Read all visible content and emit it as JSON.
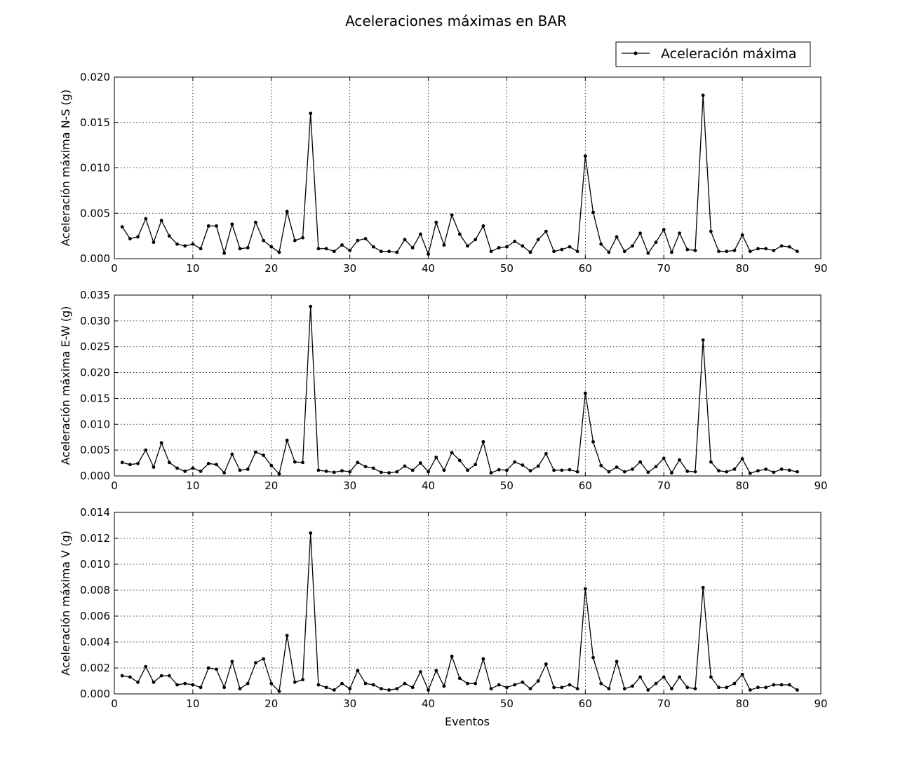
{
  "figure": {
    "title": "Aceleraciones máximas en BAR",
    "legend_label": "Aceleración máxima",
    "legend_position": "top-right",
    "xlabel": "Eventos"
  },
  "chart_data": [
    {
      "type": "line",
      "ylabel": "Aceleración máxima N-S (g)",
      "xlim": [
        0,
        90
      ],
      "ylim": [
        0,
        0.02
      ],
      "xticks": [
        0,
        10,
        20,
        30,
        40,
        50,
        60,
        70,
        80,
        90
      ],
      "yticks": [
        0.0,
        0.005,
        0.01,
        0.015,
        0.02
      ],
      "ytick_labels": [
        "0.000",
        "0.005",
        "0.010",
        "0.015",
        "0.020"
      ],
      "grid": true,
      "series": [
        {
          "name": "Aceleración máxima",
          "color": "#000000",
          "x": [
            1,
            2,
            3,
            4,
            5,
            6,
            7,
            8,
            9,
            10,
            11,
            12,
            13,
            14,
            15,
            16,
            17,
            18,
            19,
            20,
            21,
            22,
            23,
            24,
            25,
            26,
            27,
            28,
            29,
            30,
            31,
            32,
            33,
            34,
            35,
            36,
            37,
            38,
            39,
            40,
            41,
            42,
            43,
            44,
            45,
            46,
            47,
            48,
            49,
            50,
            51,
            52,
            53,
            54,
            55,
            56,
            57,
            58,
            59,
            60,
            61,
            62,
            63,
            64,
            65,
            66,
            67,
            68,
            69,
            70,
            71,
            72,
            73,
            74,
            75,
            76,
            77,
            78,
            79,
            80,
            81,
            82,
            83,
            84,
            85,
            86,
            87
          ],
          "y": [
            0.0035,
            0.0022,
            0.0024,
            0.0044,
            0.0018,
            0.0042,
            0.0025,
            0.0016,
            0.0014,
            0.0016,
            0.0011,
            0.0036,
            0.0036,
            0.0006,
            0.0038,
            0.0011,
            0.0012,
            0.004,
            0.002,
            0.0013,
            0.0007,
            0.0052,
            0.002,
            0.0023,
            0.016,
            0.0011,
            0.0011,
            0.0008,
            0.0015,
            0.0009,
            0.002,
            0.0022,
            0.0013,
            0.0008,
            0.0008,
            0.0007,
            0.0021,
            0.0012,
            0.0027,
            0.0005,
            0.004,
            0.0015,
            0.0048,
            0.0027,
            0.0014,
            0.0021,
            0.0036,
            0.0008,
            0.0012,
            0.0013,
            0.0019,
            0.0014,
            0.0007,
            0.0021,
            0.003,
            0.0008,
            0.001,
            0.0013,
            0.0008,
            0.0113,
            0.0051,
            0.0016,
            0.0007,
            0.0024,
            0.0008,
            0.0014,
            0.0028,
            0.0006,
            0.0018,
            0.0032,
            0.0007,
            0.0028,
            0.001,
            0.0009,
            0.018,
            0.003,
            0.0008,
            0.0008,
            0.0009,
            0.0026,
            0.0008,
            0.0011,
            0.0011,
            0.0009,
            0.0014,
            0.0013,
            0.0008
          ]
        }
      ]
    },
    {
      "type": "line",
      "ylabel": "Aceleración máxima E-W (g)",
      "xlim": [
        0,
        90
      ],
      "ylim": [
        0,
        0.035
      ],
      "xticks": [
        0,
        10,
        20,
        30,
        40,
        50,
        60,
        70,
        80,
        90
      ],
      "yticks": [
        0.0,
        0.005,
        0.01,
        0.015,
        0.02,
        0.025,
        0.03,
        0.035
      ],
      "ytick_labels": [
        "0.000",
        "0.005",
        "0.010",
        "0.015",
        "0.020",
        "0.025",
        "0.030",
        "0.035"
      ],
      "grid": true,
      "series": [
        {
          "name": "Aceleración máxima",
          "color": "#000000",
          "x": [
            1,
            2,
            3,
            4,
            5,
            6,
            7,
            8,
            9,
            10,
            11,
            12,
            13,
            14,
            15,
            16,
            17,
            18,
            19,
            20,
            21,
            22,
            23,
            24,
            25,
            26,
            27,
            28,
            29,
            30,
            31,
            32,
            33,
            34,
            35,
            36,
            37,
            38,
            39,
            40,
            41,
            42,
            43,
            44,
            45,
            46,
            47,
            48,
            49,
            50,
            51,
            52,
            53,
            54,
            55,
            56,
            57,
            58,
            59,
            60,
            61,
            62,
            63,
            64,
            65,
            66,
            67,
            68,
            69,
            70,
            71,
            72,
            73,
            74,
            75,
            76,
            77,
            78,
            79,
            80,
            81,
            82,
            83,
            84,
            85,
            86,
            87
          ],
          "y": [
            0.0026,
            0.0022,
            0.0024,
            0.005,
            0.0017,
            0.0064,
            0.0026,
            0.0015,
            0.0009,
            0.0015,
            0.0009,
            0.0024,
            0.0022,
            0.0006,
            0.0042,
            0.0011,
            0.0013,
            0.0046,
            0.004,
            0.002,
            0.0004,
            0.0069,
            0.0027,
            0.0026,
            0.0328,
            0.0011,
            0.0009,
            0.0007,
            0.001,
            0.0008,
            0.0026,
            0.0018,
            0.0015,
            0.0007,
            0.0006,
            0.0008,
            0.0019,
            0.0011,
            0.0025,
            0.0008,
            0.0036,
            0.0011,
            0.0045,
            0.003,
            0.0011,
            0.0022,
            0.0066,
            0.0006,
            0.0012,
            0.0011,
            0.0027,
            0.0021,
            0.001,
            0.0019,
            0.0043,
            0.0011,
            0.0011,
            0.0012,
            0.0008,
            0.016,
            0.0066,
            0.002,
            0.0008,
            0.0017,
            0.0008,
            0.0013,
            0.0027,
            0.0007,
            0.0018,
            0.0034,
            0.0006,
            0.0031,
            0.0009,
            0.0008,
            0.0263,
            0.0027,
            0.001,
            0.0008,
            0.0013,
            0.0033,
            0.0005,
            0.001,
            0.0013,
            0.0007,
            0.0013,
            0.0011,
            0.0008
          ]
        }
      ]
    },
    {
      "type": "line",
      "ylabel": "Aceleración máxima V (g)",
      "xlabel": "Eventos",
      "xlim": [
        0,
        90
      ],
      "ylim": [
        0,
        0.014
      ],
      "xticks": [
        0,
        10,
        20,
        30,
        40,
        50,
        60,
        70,
        80,
        90
      ],
      "yticks": [
        0.0,
        0.002,
        0.004,
        0.006,
        0.008,
        0.01,
        0.012,
        0.014
      ],
      "ytick_labels": [
        "0.000",
        "0.002",
        "0.004",
        "0.006",
        "0.008",
        "0.010",
        "0.012",
        "0.014"
      ],
      "grid": true,
      "series": [
        {
          "name": "Aceleración máxima",
          "color": "#000000",
          "x": [
            1,
            2,
            3,
            4,
            5,
            6,
            7,
            8,
            9,
            10,
            11,
            12,
            13,
            14,
            15,
            16,
            17,
            18,
            19,
            20,
            21,
            22,
            23,
            24,
            25,
            26,
            27,
            28,
            29,
            30,
            31,
            32,
            33,
            34,
            35,
            36,
            37,
            38,
            39,
            40,
            41,
            42,
            43,
            44,
            45,
            46,
            47,
            48,
            49,
            50,
            51,
            52,
            53,
            54,
            55,
            56,
            57,
            58,
            59,
            60,
            61,
            62,
            63,
            64,
            65,
            66,
            67,
            68,
            69,
            70,
            71,
            72,
            73,
            74,
            75,
            76,
            77,
            78,
            79,
            80,
            81,
            82,
            83,
            84,
            85,
            86,
            87
          ],
          "y": [
            0.0014,
            0.0013,
            0.0009,
            0.0021,
            0.0009,
            0.0014,
            0.0014,
            0.0007,
            0.0008,
            0.0007,
            0.0005,
            0.002,
            0.0019,
            0.0005,
            0.0025,
            0.0004,
            0.0008,
            0.0024,
            0.0027,
            0.0008,
            0.0002,
            0.0045,
            0.0009,
            0.0011,
            0.0124,
            0.0007,
            0.0005,
            0.0003,
            0.0008,
            0.0004,
            0.0018,
            0.0008,
            0.0007,
            0.0004,
            0.0003,
            0.0004,
            0.0008,
            0.0005,
            0.0017,
            0.0003,
            0.0018,
            0.0006,
            0.0029,
            0.0012,
            0.0008,
            0.0008,
            0.0027,
            0.0004,
            0.0007,
            0.0005,
            0.0007,
            0.0009,
            0.0004,
            0.001,
            0.0023,
            0.0005,
            0.0005,
            0.0007,
            0.0004,
            0.0081,
            0.0028,
            0.0008,
            0.0004,
            0.0025,
            0.0004,
            0.0006,
            0.0013,
            0.0003,
            0.0008,
            0.0013,
            0.0004,
            0.0013,
            0.0005,
            0.0004,
            0.0082,
            0.0013,
            0.0005,
            0.0005,
            0.0008,
            0.0015,
            0.0003,
            0.0005,
            0.0005,
            0.0007,
            0.0007,
            0.0007,
            0.0003
          ]
        }
      ]
    }
  ]
}
